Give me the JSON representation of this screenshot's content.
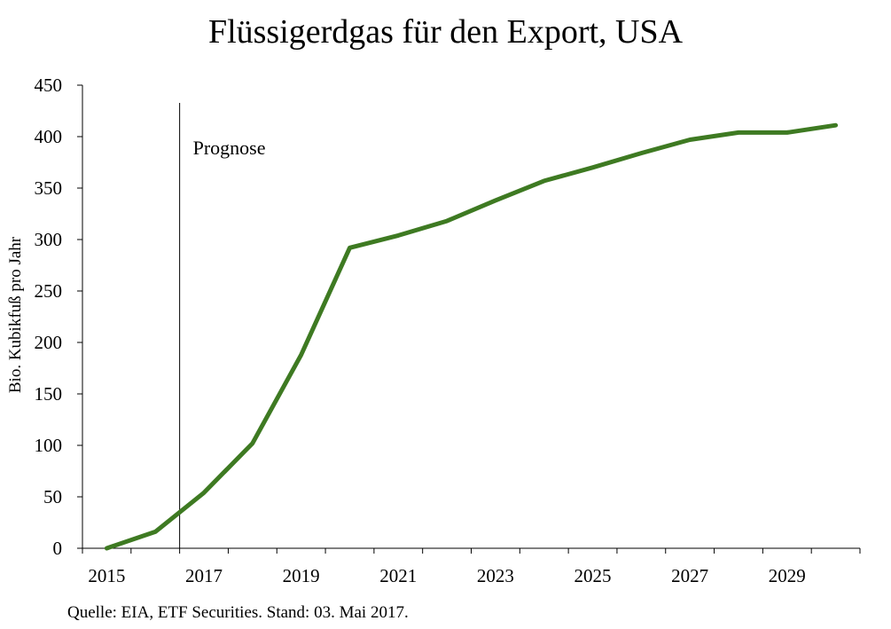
{
  "chart_data": {
    "type": "line",
    "title": "Flüssigerdgas für den Export, USA",
    "xlabel": "",
    "ylabel": "Bio. Kubikfuß pro Jahr",
    "ylim": [
      0,
      450
    ],
    "yticks": [
      "0",
      "50",
      "100",
      "150",
      "200",
      "250",
      "300",
      "350",
      "400",
      "450"
    ],
    "xlim": [
      2014.5,
      2030.5
    ],
    "xticks": [
      "2015",
      "2017",
      "2019",
      "2021",
      "2023",
      "2025",
      "2027",
      "2029"
    ],
    "grid": false,
    "annotation": {
      "label": "Prognose",
      "x": 2016.5
    },
    "series": [
      {
        "color": "#3e7a22",
        "x": [
          2015,
          2016,
          2017,
          2018,
          2019,
          2020,
          2021,
          2022,
          2023,
          2024,
          2025,
          2026,
          2027,
          2028,
          2029,
          2030
        ],
        "values": [
          0,
          16,
          54,
          102,
          188,
          292,
          304,
          318,
          338,
          357,
          370,
          384,
          397,
          404,
          404,
          411
        ]
      }
    ]
  },
  "source": "Quelle: EIA, ETF Securities. Stand: 03. Mai 2017."
}
